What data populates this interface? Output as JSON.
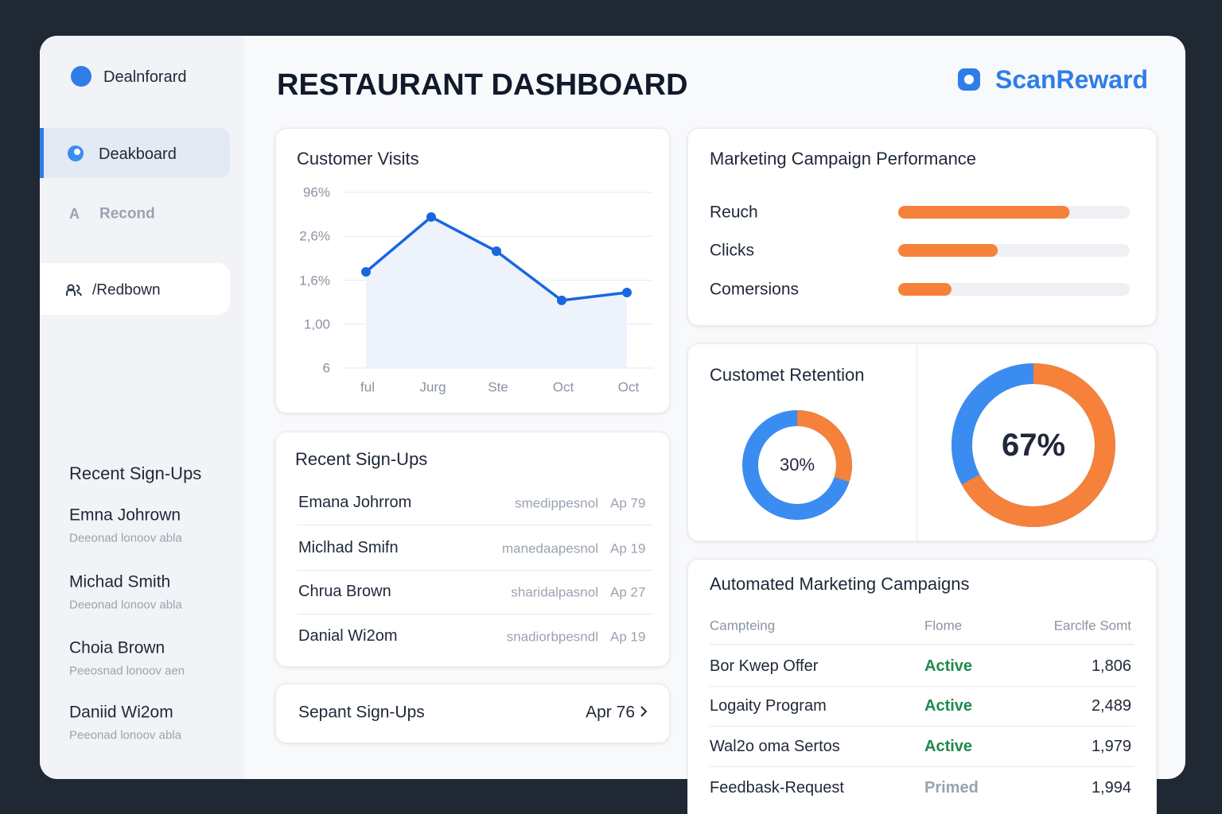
{
  "sidebar": {
    "brand": "Dealnforard",
    "nav": [
      {
        "label": "Deakboard"
      },
      {
        "icon": "A",
        "label": "Recond"
      },
      {
        "label": "/Redbown"
      }
    ],
    "recent_title": "Recent Sign-Ups",
    "recent": [
      {
        "name": "Emna Johrown",
        "detail": "Deeonad lonoov abla"
      },
      {
        "name": "Michad Smith",
        "detail": "Deeonad lonoov abla"
      },
      {
        "name": "Choia Brown",
        "detail": "Peeosnad lonoov aen"
      },
      {
        "name": "Daniid Wi2om",
        "detail": "Peeonad lonoov abla"
      }
    ]
  },
  "header": {
    "title": "RESTAURANT DASHBOARD",
    "logo": "ScanReward"
  },
  "chart_data": [
    {
      "type": "line",
      "title": "Customer Visits",
      "categories": [
        "ful",
        "Jurg",
        "Ste",
        "Oct",
        "Oct"
      ],
      "values": [
        2.19,
        3.44,
        2.66,
        1.54,
        1.72
      ],
      "color": "#1a66e0",
      "ylim": [
        0,
        4
      ],
      "yticks": [
        {
          "value": 0,
          "label": "6"
        },
        {
          "value": 1,
          "label": "1,00"
        },
        {
          "value": 2,
          "label": "1,6%"
        },
        {
          "value": 3,
          "label": "2,6%"
        },
        {
          "value": 4,
          "label": "96%"
        }
      ],
      "grid": true
    },
    {
      "type": "bar",
      "orientation": "horizontal",
      "title": "Marketing Campaign Performance",
      "categories": [
        "Reuch",
        "Clicks",
        "Comersions"
      ],
      "values": [
        74,
        43,
        23
      ],
      "xlim": [
        0,
        100
      ],
      "color": "#f5813a"
    },
    {
      "type": "donut",
      "title": "Customet Retention",
      "values": [
        30,
        67
      ],
      "value_labels": [
        "30%",
        "67%"
      ],
      "color": "#f5813a",
      "rest_color": "#3b8cf0"
    }
  ],
  "signups": {
    "title": "Recent Sign-Ups",
    "rows": [
      [
        "Emana Johrrom",
        "smedippesnol",
        "Ap 79"
      ],
      [
        "Miclhad Smifn",
        "manedaapesnol",
        "Ap 19"
      ],
      [
        "Chrua Brown",
        "sharidalpasnol",
        "Ap 27"
      ],
      [
        "Danial Wi2om",
        "snadiorbpesndl",
        "Ap 19"
      ]
    ]
  },
  "footer_card": {
    "label": "Sepant Sign-Ups",
    "date": "Apr 76"
  },
  "campaigns": {
    "title": "Automated Marketing Campaigns",
    "columns": [
      "Campteing",
      "Flome",
      "Earclfe Somt"
    ],
    "rows": [
      [
        "Bor Kwep Offer",
        "Active",
        "1,806"
      ],
      [
        "Logaity Program",
        "Active",
        "2,489"
      ],
      [
        "Wal2o oma Sertos",
        "Active",
        "1,979"
      ],
      [
        "Feedbask-Request",
        "Primed",
        "1,994"
      ]
    ]
  }
}
